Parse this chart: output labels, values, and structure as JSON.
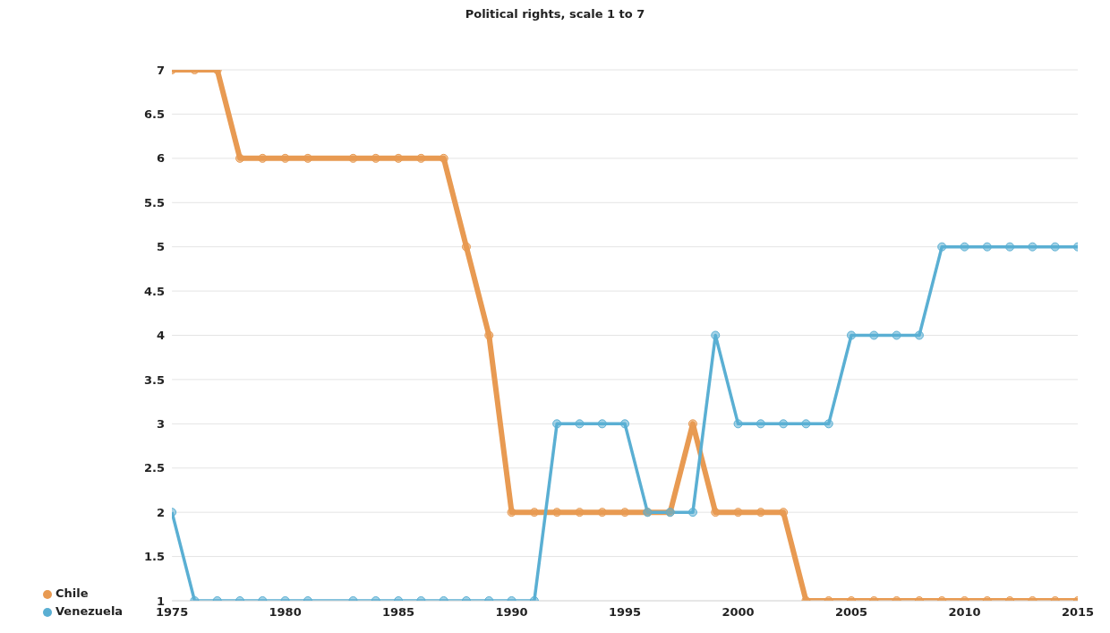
{
  "chart_data": {
    "type": "line",
    "title": "Political rights, scale 1 to 7",
    "x": [
      1975,
      1976,
      1977,
      1978,
      1979,
      1980,
      1981,
      1983,
      1984,
      1985,
      1986,
      1987,
      1988,
      1989,
      1990,
      1991,
      1992,
      1993,
      1994,
      1995,
      1996,
      1997,
      1998,
      1999,
      2000,
      2001,
      2002,
      2003,
      2004,
      2005,
      2006,
      2007,
      2008,
      2009,
      2010,
      2011,
      2012,
      2013,
      2014,
      2015
    ],
    "series": [
      {
        "name": "Chile",
        "color": "#e89a52",
        "values": [
          7,
          7,
          7,
          6,
          6,
          6,
          6,
          6,
          6,
          6,
          6,
          6,
          5,
          4,
          2,
          2,
          2,
          2,
          2,
          2,
          2,
          2,
          3,
          2,
          2,
          2,
          2,
          1,
          1,
          1,
          1,
          1,
          1,
          1,
          1,
          1,
          1,
          1,
          1,
          1
        ]
      },
      {
        "name": "Venezuela",
        "color": "#5aafd3",
        "values": [
          2,
          1,
          1,
          1,
          1,
          1,
          1,
          1,
          1,
          1,
          1,
          1,
          1,
          1,
          1,
          1,
          3,
          3,
          3,
          3,
          2,
          2,
          2,
          4,
          3,
          3,
          3,
          3,
          3,
          4,
          4,
          4,
          4,
          5,
          5,
          5,
          5,
          5,
          5,
          5
        ]
      }
    ],
    "xlim": [
      1975,
      2015
    ],
    "xticks": [
      1975,
      1980,
      1985,
      1990,
      1995,
      2000,
      2005,
      2010,
      2015
    ],
    "ylim": [
      1,
      7
    ],
    "yticks": [
      1,
      1.5,
      2,
      2.5,
      3,
      3.5,
      4,
      4.5,
      5,
      5.5,
      6,
      6.5,
      7
    ],
    "grid": "y",
    "legend": "bottom left",
    "marker": "circle",
    "line_style": "solid"
  }
}
